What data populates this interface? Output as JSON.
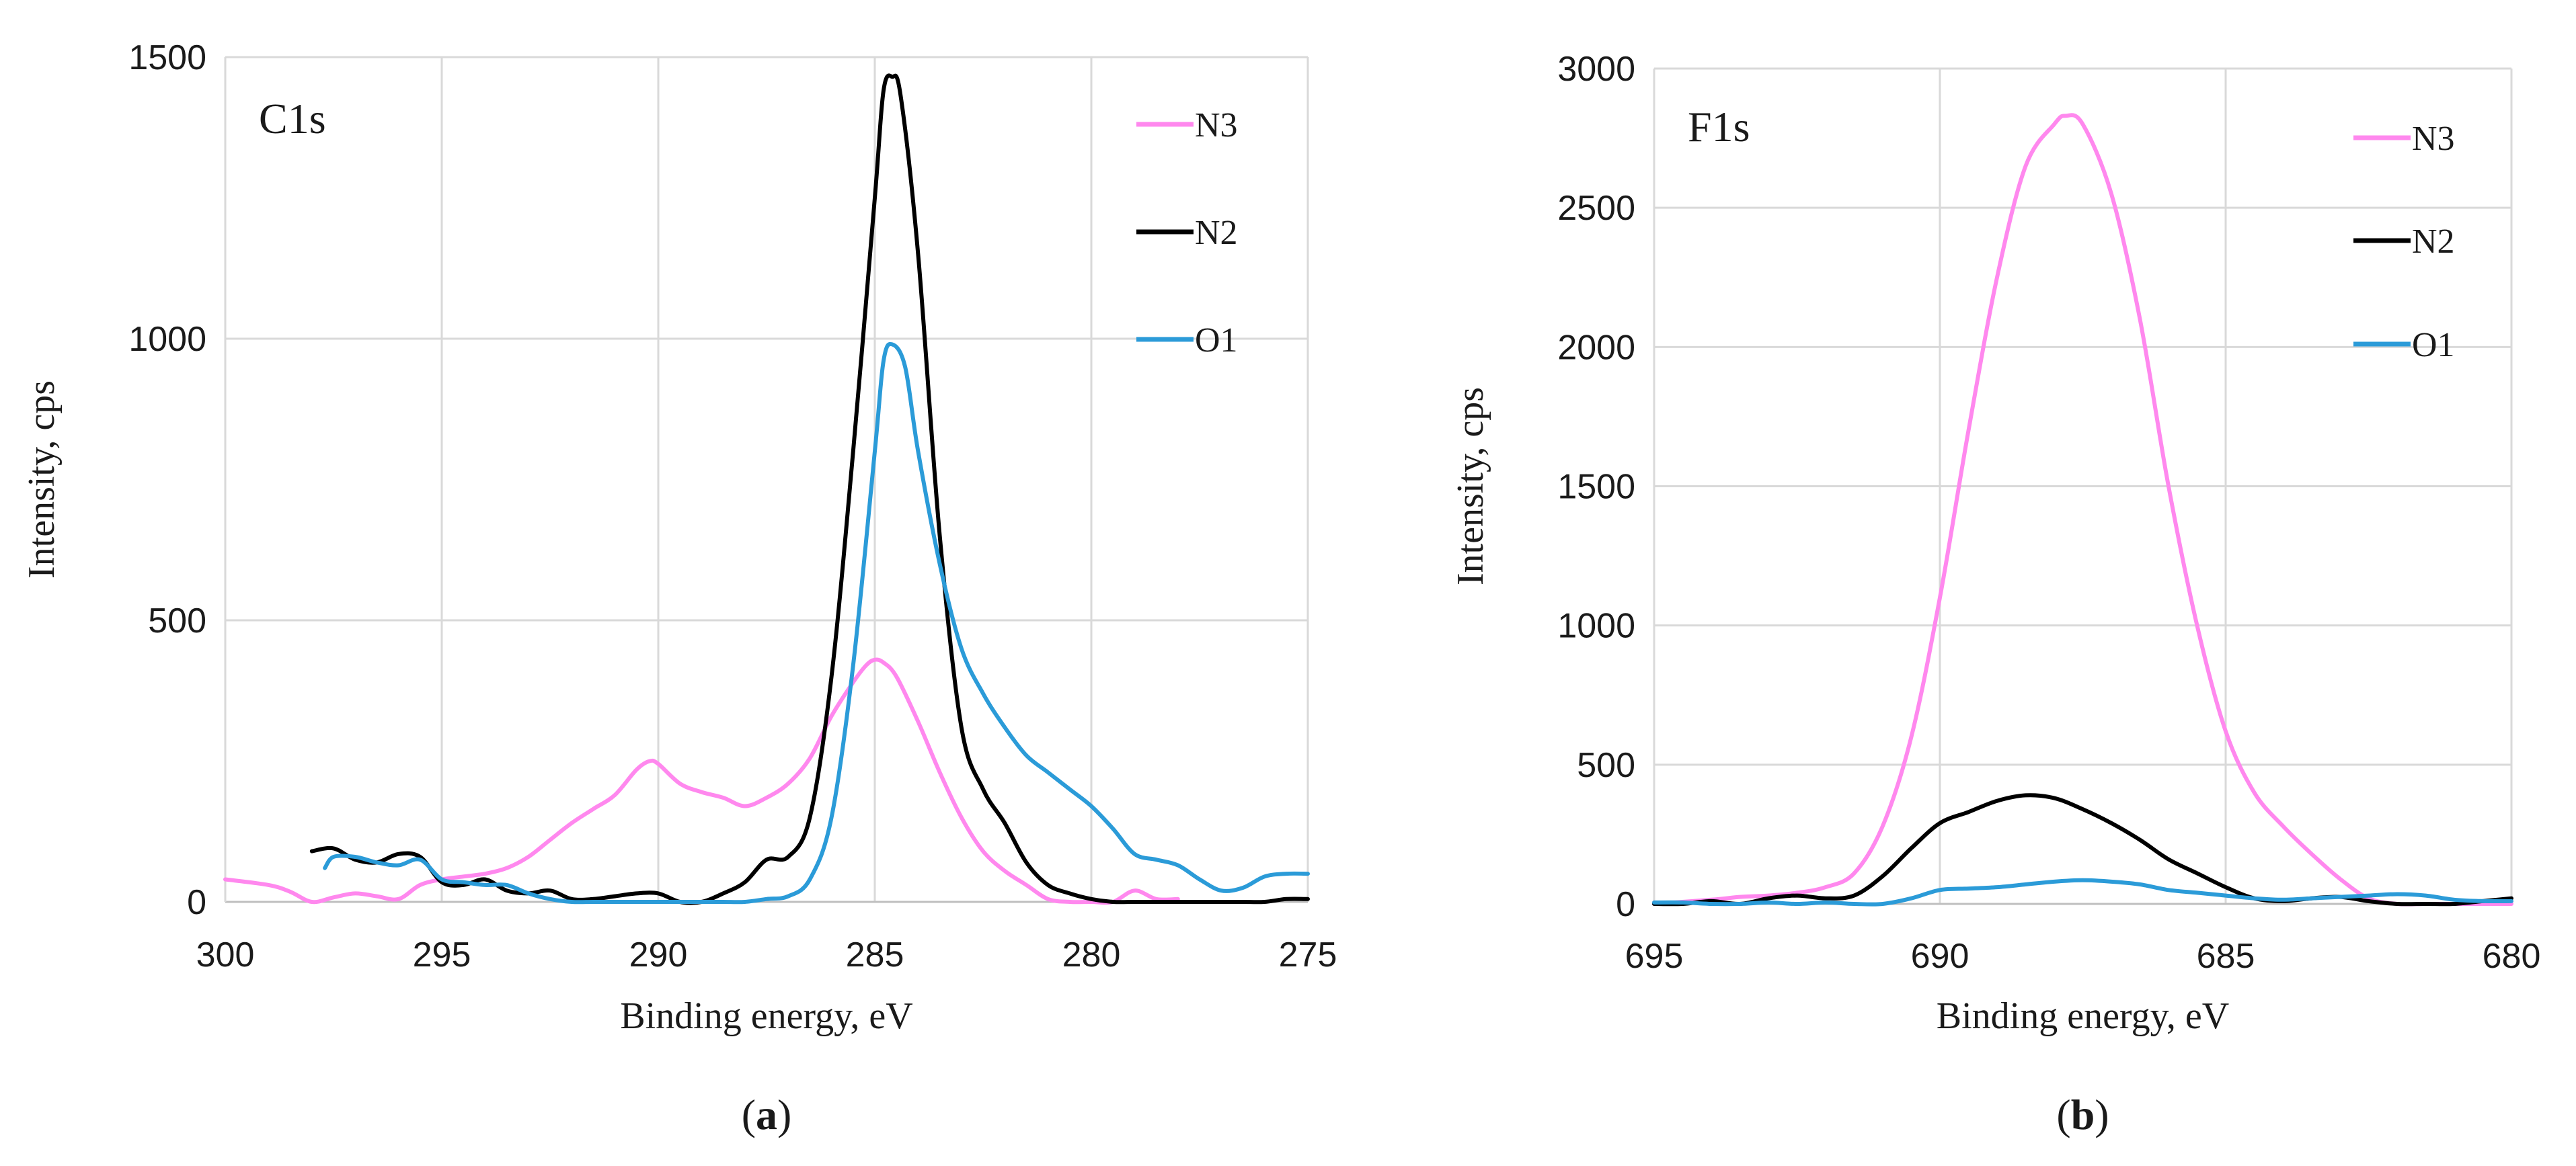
{
  "chart_data": [
    {
      "type": "line",
      "title": "C1s",
      "xlabel": "Binding energy, eV",
      "ylabel": "Intensity, cps",
      "xlim": [
        300,
        275
      ],
      "ylim": [
        0,
        1500
      ],
      "x_reversed": true,
      "xticks": [
        300,
        295,
        290,
        285,
        280,
        275
      ],
      "yticks": [
        0,
        500,
        1000,
        1500
      ],
      "grid": true,
      "legend_position": "top-right",
      "sublabel_letter": "a",
      "series": [
        {
          "name": "N3",
          "color": "#ff88ee",
          "x": [
            300,
            299,
            298.5,
            298,
            297.5,
            297,
            296.5,
            296,
            295.5,
            295,
            294.5,
            294,
            293.5,
            293,
            292.5,
            292,
            291.5,
            291,
            290.5,
            290.2,
            290,
            289.5,
            289,
            288.5,
            288,
            287.5,
            287,
            286.5,
            286,
            285.5,
            285.2,
            285,
            284.8,
            284.5,
            284,
            283.5,
            283,
            282.5,
            282,
            281.5,
            281,
            280.5,
            280,
            279.5,
            279,
            278.5,
            278
          ],
          "values": [
            40,
            30,
            18,
            0,
            8,
            15,
            10,
            5,
            30,
            40,
            45,
            50,
            60,
            80,
            110,
            140,
            165,
            190,
            235,
            250,
            245,
            210,
            195,
            185,
            170,
            185,
            210,
            255,
            330,
            390,
            420,
            430,
            425,
            400,
            320,
            230,
            150,
            90,
            55,
            30,
            5,
            0,
            0,
            0,
            20,
            5,
            5
          ]
        },
        {
          "name": "N2",
          "color": "#000000",
          "x": [
            298,
            297.5,
            297,
            296.5,
            296,
            295.5,
            295,
            294.5,
            294,
            293.5,
            293,
            292.5,
            292,
            291.5,
            291,
            290.5,
            290,
            289.5,
            289,
            288.5,
            288,
            287.5,
            287,
            286.5,
            286,
            285.5,
            285,
            284.8,
            284.6,
            284.4,
            284,
            283.5,
            283,
            282.5,
            282,
            281.5,
            281,
            280.5,
            280,
            279.5,
            279,
            278.5,
            278,
            277.5,
            277,
            276.5,
            276,
            275.5,
            275
          ],
          "values": [
            90,
            95,
            75,
            70,
            85,
            80,
            35,
            30,
            40,
            20,
            15,
            20,
            5,
            5,
            10,
            15,
            15,
            0,
            0,
            15,
            35,
            75,
            80,
            150,
            400,
            800,
            1250,
            1440,
            1465,
            1430,
            1150,
            650,
            310,
            200,
            140,
            70,
            30,
            15,
            5,
            0,
            0,
            0,
            0,
            0,
            0,
            0,
            0,
            5,
            5
          ]
        },
        {
          "name": "O1",
          "color": "#2b9bd8",
          "x": [
            297.7,
            297.5,
            297,
            296.5,
            296,
            295.5,
            295,
            294.5,
            294,
            293.5,
            293,
            292.5,
            292,
            291.5,
            291,
            290.5,
            290,
            289.5,
            289,
            288.5,
            288,
            287.5,
            287,
            286.5,
            286,
            285.5,
            285,
            284.8,
            284.6,
            284.3,
            284,
            283.5,
            283,
            282.5,
            282,
            281.5,
            281,
            280.5,
            280,
            279.5,
            279,
            278.5,
            278,
            277.5,
            277,
            276.5,
            276,
            275.5,
            275
          ],
          "values": [
            60,
            80,
            80,
            70,
            65,
            75,
            40,
            35,
            30,
            30,
            15,
            5,
            0,
            0,
            0,
            0,
            0,
            0,
            0,
            0,
            0,
            5,
            10,
            40,
            150,
            420,
            800,
            960,
            990,
            950,
            800,
            600,
            450,
            370,
            310,
            260,
            230,
            200,
            170,
            130,
            85,
            75,
            65,
            40,
            20,
            25,
            45,
            50,
            50
          ]
        }
      ]
    },
    {
      "type": "line",
      "title": "F1s",
      "xlabel": "Binding energy, eV",
      "ylabel": "Intensity, cps",
      "xlim": [
        695,
        680
      ],
      "ylim": [
        0,
        3000
      ],
      "x_reversed": true,
      "xticks": [
        695,
        690,
        685,
        680
      ],
      "yticks": [
        0,
        500,
        1000,
        1500,
        2000,
        2500,
        3000
      ],
      "grid": true,
      "legend_position": "top-right",
      "sublabel_letter": "b",
      "series": [
        {
          "name": "N3",
          "color": "#ff88ee",
          "x": [
            695,
            694,
            693.5,
            693,
            692.5,
            692,
            691.5,
            691,
            690.5,
            690,
            689.5,
            689,
            688.5,
            688,
            687.8,
            687.5,
            687,
            686.5,
            686,
            685.5,
            685,
            684.5,
            684,
            683.5,
            683,
            682.5,
            682,
            681.5,
            681,
            680.5,
            680
          ],
          "values": [
            0,
            15,
            25,
            30,
            40,
            60,
            110,
            280,
            600,
            1100,
            1700,
            2250,
            2650,
            2800,
            2830,
            2800,
            2550,
            2100,
            1500,
            1000,
            620,
            400,
            280,
            180,
            90,
            20,
            0,
            0,
            0,
            0,
            0
          ]
        },
        {
          "name": "N2",
          "color": "#000000",
          "x": [
            695,
            694.5,
            694,
            693.5,
            693,
            692.5,
            692,
            691.5,
            691,
            690.5,
            690,
            689.5,
            689,
            688.5,
            688,
            687.5,
            687,
            686.5,
            686,
            685.5,
            685,
            684.5,
            684,
            683.5,
            683,
            682.5,
            682,
            681.5,
            681,
            680.5,
            680
          ],
          "values": [
            0,
            0,
            10,
            0,
            20,
            30,
            20,
            30,
            100,
            200,
            290,
            330,
            370,
            390,
            380,
            340,
            290,
            230,
            160,
            110,
            60,
            20,
            10,
            20,
            25,
            10,
            0,
            0,
            0,
            10,
            20
          ]
        },
        {
          "name": "O1",
          "color": "#2b9bd8",
          "x": [
            695,
            694.5,
            694,
            693.5,
            693,
            692.5,
            692,
            691.5,
            691,
            690.5,
            690,
            689.5,
            689,
            688.5,
            688,
            687.5,
            687,
            686.5,
            686,
            685.5,
            685,
            684.5,
            684,
            683.5,
            683,
            682.5,
            682,
            681.5,
            681,
            680.5,
            680
          ],
          "values": [
            5,
            5,
            0,
            0,
            5,
            0,
            5,
            0,
            0,
            20,
            50,
            55,
            60,
            70,
            80,
            85,
            80,
            70,
            50,
            40,
            30,
            20,
            15,
            20,
            25,
            30,
            35,
            30,
            15,
            10,
            10
          ]
        }
      ]
    }
  ]
}
